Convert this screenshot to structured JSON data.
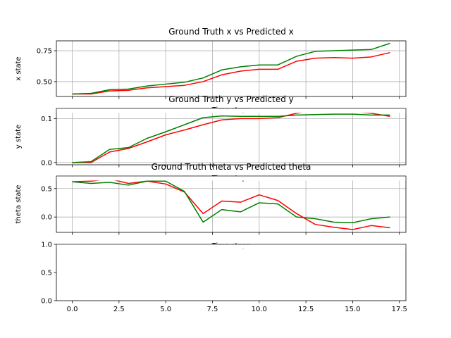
{
  "chart_data": [
    {
      "type": "line",
      "title": "Ground Truth x vs Predicted x",
      "ylabel": "x state",
      "xlabel": "Time steps",
      "xlim": [
        -0.85,
        17.85
      ],
      "ylim": [
        0.38,
        0.83
      ],
      "yticks": [
        0.5,
        0.75
      ],
      "ytick_labels": [
        "0.50",
        "0.75"
      ],
      "grid": true,
      "x": [
        0,
        1,
        2,
        3,
        4,
        5,
        6,
        7,
        8,
        9,
        10,
        11,
        12,
        13,
        14,
        15,
        16,
        17
      ],
      "series": [
        {
          "color": "#ff0000",
          "values": [
            0.4,
            0.4,
            0.425,
            0.43,
            0.45,
            0.46,
            0.47,
            0.5,
            0.555,
            0.585,
            0.6,
            0.6,
            0.665,
            0.69,
            0.695,
            0.69,
            0.7,
            0.735
          ]
        },
        {
          "color": "#008000",
          "values": [
            0.4,
            0.405,
            0.435,
            0.44,
            0.465,
            0.48,
            0.495,
            0.53,
            0.595,
            0.62,
            0.635,
            0.635,
            0.705,
            0.745,
            0.75,
            0.755,
            0.76,
            0.81
          ]
        }
      ]
    },
    {
      "type": "line",
      "title": "Ground Truth y vs Predicted y",
      "ylabel": "y state",
      "xlabel": "Time steps",
      "xlim": [
        -0.85,
        17.85
      ],
      "ylim": [
        -0.005,
        0.123
      ],
      "yticks": [
        0.0,
        0.1
      ],
      "ytick_labels": [
        "0.0",
        "0.1"
      ],
      "grid": true,
      "x": [
        0,
        1,
        2,
        3,
        4,
        5,
        6,
        7,
        8,
        9,
        10,
        11,
        12,
        13,
        14,
        15,
        16,
        17
      ],
      "series": [
        {
          "color": "#ff0000",
          "values": [
            0.0,
            0.0,
            0.024,
            0.032,
            0.047,
            0.063,
            0.074,
            0.086,
            0.097,
            0.1,
            0.1,
            0.102,
            0.112,
            0.118,
            0.115,
            0.115,
            0.112,
            0.105
          ]
        },
        {
          "color": "#008000",
          "values": [
            0.0,
            0.002,
            0.03,
            0.034,
            0.055,
            0.07,
            0.086,
            0.102,
            0.106,
            0.105,
            0.105,
            0.105,
            0.108,
            0.109,
            0.11,
            0.11,
            0.108,
            0.108
          ]
        }
      ]
    },
    {
      "type": "line",
      "title": "Ground Truth theta vs Predicted theta",
      "ylabel": "theta state",
      "xlabel": "Time steps",
      "xlim": [
        -0.85,
        17.85
      ],
      "ylim": [
        -0.27,
        0.72
      ],
      "yticks": [
        0.0,
        0.5
      ],
      "ytick_labels": [
        "0.0",
        "0.5"
      ],
      "grid": true,
      "x": [
        0,
        1,
        2,
        3,
        4,
        5,
        6,
        7,
        8,
        9,
        10,
        11,
        12,
        13,
        14,
        15,
        16,
        17
      ],
      "series": [
        {
          "color": "#ff0000",
          "values": [
            0.62,
            0.63,
            0.67,
            0.59,
            0.63,
            0.58,
            0.44,
            0.06,
            0.28,
            0.26,
            0.39,
            0.29,
            0.06,
            -0.13,
            -0.18,
            -0.22,
            -0.15,
            -0.19
          ]
        },
        {
          "color": "#008000",
          "values": [
            0.62,
            0.59,
            0.61,
            0.56,
            0.63,
            0.63,
            0.45,
            -0.09,
            0.13,
            0.09,
            0.25,
            0.23,
            0.0,
            -0.03,
            -0.09,
            -0.1,
            -0.03,
            0.0
          ]
        }
      ]
    },
    {
      "type": "line",
      "title": "",
      "ylabel": "",
      "xlabel": "",
      "xlim": [
        -0.85,
        17.85
      ],
      "ylim": [
        0.0,
        1.0
      ],
      "yticks": [
        0.0,
        0.5,
        1.0
      ],
      "ytick_labels": [
        "0.0",
        "0.5",
        "1.0"
      ],
      "xticks": [
        0.0,
        2.5,
        5.0,
        7.5,
        10.0,
        12.5,
        15.0,
        17.5
      ],
      "xtick_labels": [
        "0.0",
        "2.5",
        "5.0",
        "7.5",
        "10.0",
        "12.5",
        "15.0",
        "17.5"
      ],
      "grid": false,
      "x": [],
      "series": []
    }
  ]
}
